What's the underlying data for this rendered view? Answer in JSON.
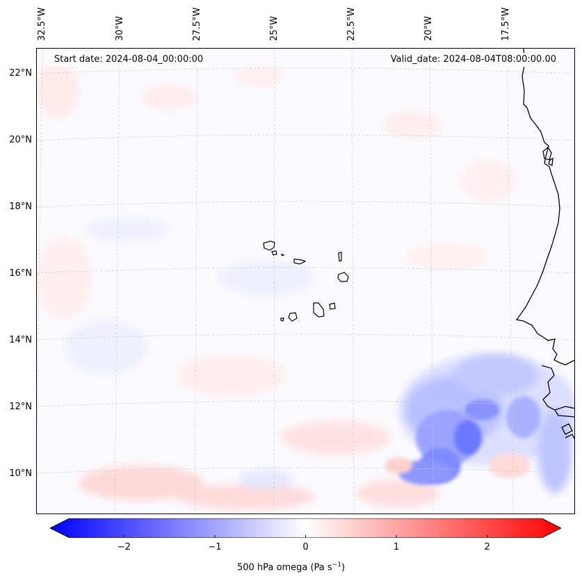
{
  "map": {
    "start_date": "Start date: 2024-08-04_00:00:00",
    "valid_date": "Valid_date: 2024-08-04T08:00:00.00",
    "lon_labels": [
      "32.5°W",
      "30°W",
      "27.5°W",
      "25°W",
      "22.5°W",
      "20°W",
      "17.5°W"
    ],
    "lat_labels": [
      "22°N",
      "20°N",
      "18°N",
      "16°N",
      "14°N",
      "12°N",
      "10°N"
    ],
    "features": [
      "cabo-verde-islands",
      "west-african-coastline"
    ]
  },
  "colorbar": {
    "label": "500 hPa omega (Pa s",
    "label_sup": "−1",
    "label_end": ")",
    "ticks": [
      "−2",
      "−1",
      "0",
      "1",
      "2"
    ],
    "tick_values": [
      -2,
      -1,
      0,
      1,
      2
    ],
    "range": [
      -2.6,
      2.6
    ],
    "colors": {
      "negative": "#0000ff",
      "zero": "#ffffff",
      "positive": "#ff0000"
    }
  }
}
